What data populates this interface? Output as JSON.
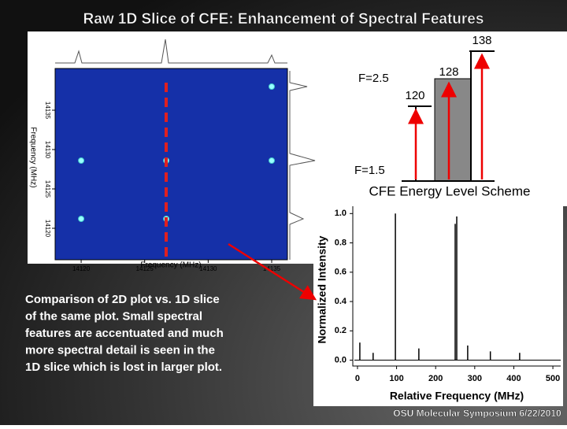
{
  "title": "Raw 1D Slice of CFE: Enhancement of Spectral Features",
  "energy_levels": {
    "upper_level": "F=2.5",
    "lower_level": "F=1.5",
    "transitions": [
      138,
      128,
      120
    ],
    "caption": "CFE Energy Level Scheme"
  },
  "plot_2d": {
    "x_label": "Frequency (MHz)",
    "y_label": "Frequency (MHz)",
    "xlim": [
      14117.95,
      14136.24
    ],
    "ylim": [
      14116,
      14140.3
    ],
    "xticks": [
      14120,
      14125,
      14130,
      14135
    ],
    "yticks": [
      14120,
      14125,
      14130,
      14135
    ],
    "points": {
      "x": [
        14120,
        14120,
        14126.7,
        14126.7,
        14135,
        14135
      ],
      "y": [
        14128.6,
        14121.2,
        14128.6,
        14121.2,
        14128.6,
        14138
      ]
    }
  },
  "spectrum": {
    "x_label": "Relative Frequency (MHz)",
    "y_label": "Normalized Intensity",
    "xlim": [
      -12,
      520
    ],
    "ylim": [
      -0.04,
      1.05
    ],
    "xticks": [
      0,
      100,
      200,
      300,
      400,
      500
    ],
    "yticks": [
      {
        "value": 0,
        "label": "0.0"
      },
      {
        "value": 0.2,
        "label": "0.2"
      },
      {
        "value": 0.4,
        "label": "0.4"
      },
      {
        "value": 0.6,
        "label": "0.6"
      },
      {
        "value": 0.8,
        "label": "0.8"
      },
      {
        "value": 1,
        "label": "1.0"
      }
    ],
    "peaks": {
      "x": [
        6,
        40,
        97,
        157,
        250,
        254,
        282,
        340,
        415
      ],
      "values": [
        0.12,
        0.05,
        1,
        0.08,
        0.93,
        0.98,
        0.1,
        0.06,
        0.05
      ]
    }
  },
  "caption": [
    "Comparison of 2D plot vs. 1D slice",
    "of the same plot. Small spectral",
    "features are accentuated and much",
    "more spectral detail is seen in the",
    "1D slice which is lost in larger plot."
  ],
  "footer": "OSU Molecular Symposium 6/22/2010"
}
